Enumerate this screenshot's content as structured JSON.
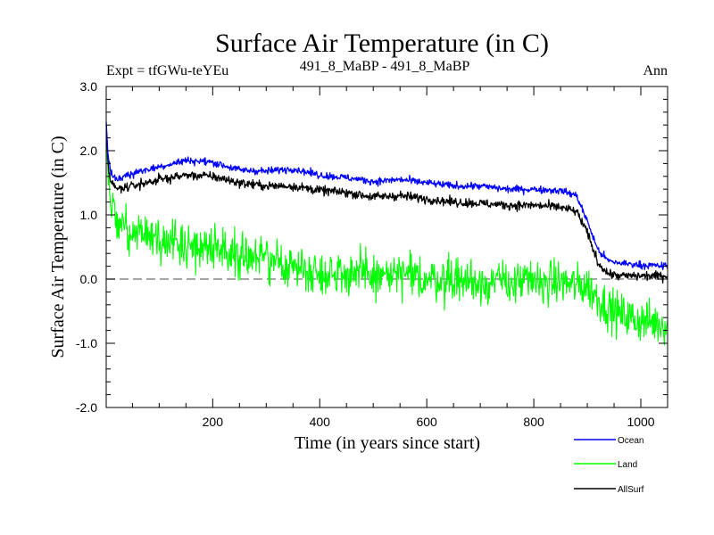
{
  "chart_data": {
    "type": "line",
    "title": "Surface Air Temperature (in C)",
    "subtitle_left": "Expt = tfGWu-teYEu",
    "subtitle_center": "491_8_MaBP - 491_8_MaBP",
    "subtitle_right": "Ann",
    "xlabel": "Time (in years since start)",
    "ylabel": "Surface Air Temperature (in C)",
    "xlim": [
      1,
      1050
    ],
    "ylim": [
      -2.0,
      3.0
    ],
    "xticks": [
      200,
      400,
      600,
      800,
      1000
    ],
    "xtick_labels": [
      "200",
      "400",
      "600",
      "800",
      "1000"
    ],
    "yticks": [
      -2.0,
      -1.0,
      0.0,
      1.0,
      2.0,
      3.0
    ],
    "ytick_labels": [
      "-2.0",
      "-1.0",
      "0.0",
      "1.0",
      "2.0",
      "3.0"
    ],
    "zero_line": 0.0,
    "legend_position": "bottom-right",
    "series": [
      {
        "name": "Ocean",
        "color": "#0000ff",
        "x": [
          1,
          5,
          10,
          20,
          50,
          100,
          150,
          200,
          250,
          300,
          350,
          400,
          450,
          500,
          550,
          600,
          650,
          700,
          750,
          800,
          850,
          880,
          900,
          920,
          940,
          960,
          1000,
          1050
        ],
        "values": [
          2.45,
          1.85,
          1.65,
          1.55,
          1.65,
          1.75,
          1.85,
          1.82,
          1.7,
          1.68,
          1.72,
          1.62,
          1.58,
          1.52,
          1.55,
          1.5,
          1.45,
          1.45,
          1.4,
          1.4,
          1.38,
          1.3,
          0.9,
          0.45,
          0.28,
          0.25,
          0.22,
          0.2
        ]
      },
      {
        "name": "Land",
        "color": "#00ff00",
        "x": [
          1,
          5,
          10,
          20,
          50,
          100,
          150,
          200,
          250,
          300,
          350,
          400,
          450,
          500,
          550,
          600,
          650,
          700,
          750,
          800,
          850,
          880,
          900,
          920,
          940,
          960,
          1000,
          1050
        ],
        "values": [
          2.3,
          1.4,
          1.05,
          0.9,
          0.75,
          0.6,
          0.55,
          0.5,
          0.4,
          0.3,
          0.2,
          0.1,
          0.1,
          0.05,
          0.05,
          0.0,
          0.0,
          -0.05,
          -0.05,
          -0.05,
          -0.05,
          -0.1,
          -0.1,
          -0.3,
          -0.45,
          -0.55,
          -0.65,
          -0.7
        ]
      },
      {
        "name": "AllSurf",
        "color": "#000000",
        "x": [
          1,
          5,
          10,
          20,
          50,
          100,
          150,
          200,
          250,
          300,
          350,
          400,
          450,
          500,
          550,
          600,
          650,
          700,
          750,
          800,
          850,
          880,
          900,
          920,
          940,
          960,
          1000,
          1050
        ],
        "values": [
          2.4,
          1.75,
          1.5,
          1.4,
          1.45,
          1.55,
          1.62,
          1.6,
          1.5,
          1.45,
          1.45,
          1.38,
          1.35,
          1.28,
          1.3,
          1.25,
          1.2,
          1.18,
          1.15,
          1.15,
          1.12,
          1.05,
          0.72,
          0.25,
          0.08,
          0.05,
          0.05,
          0.05
        ]
      }
    ]
  }
}
